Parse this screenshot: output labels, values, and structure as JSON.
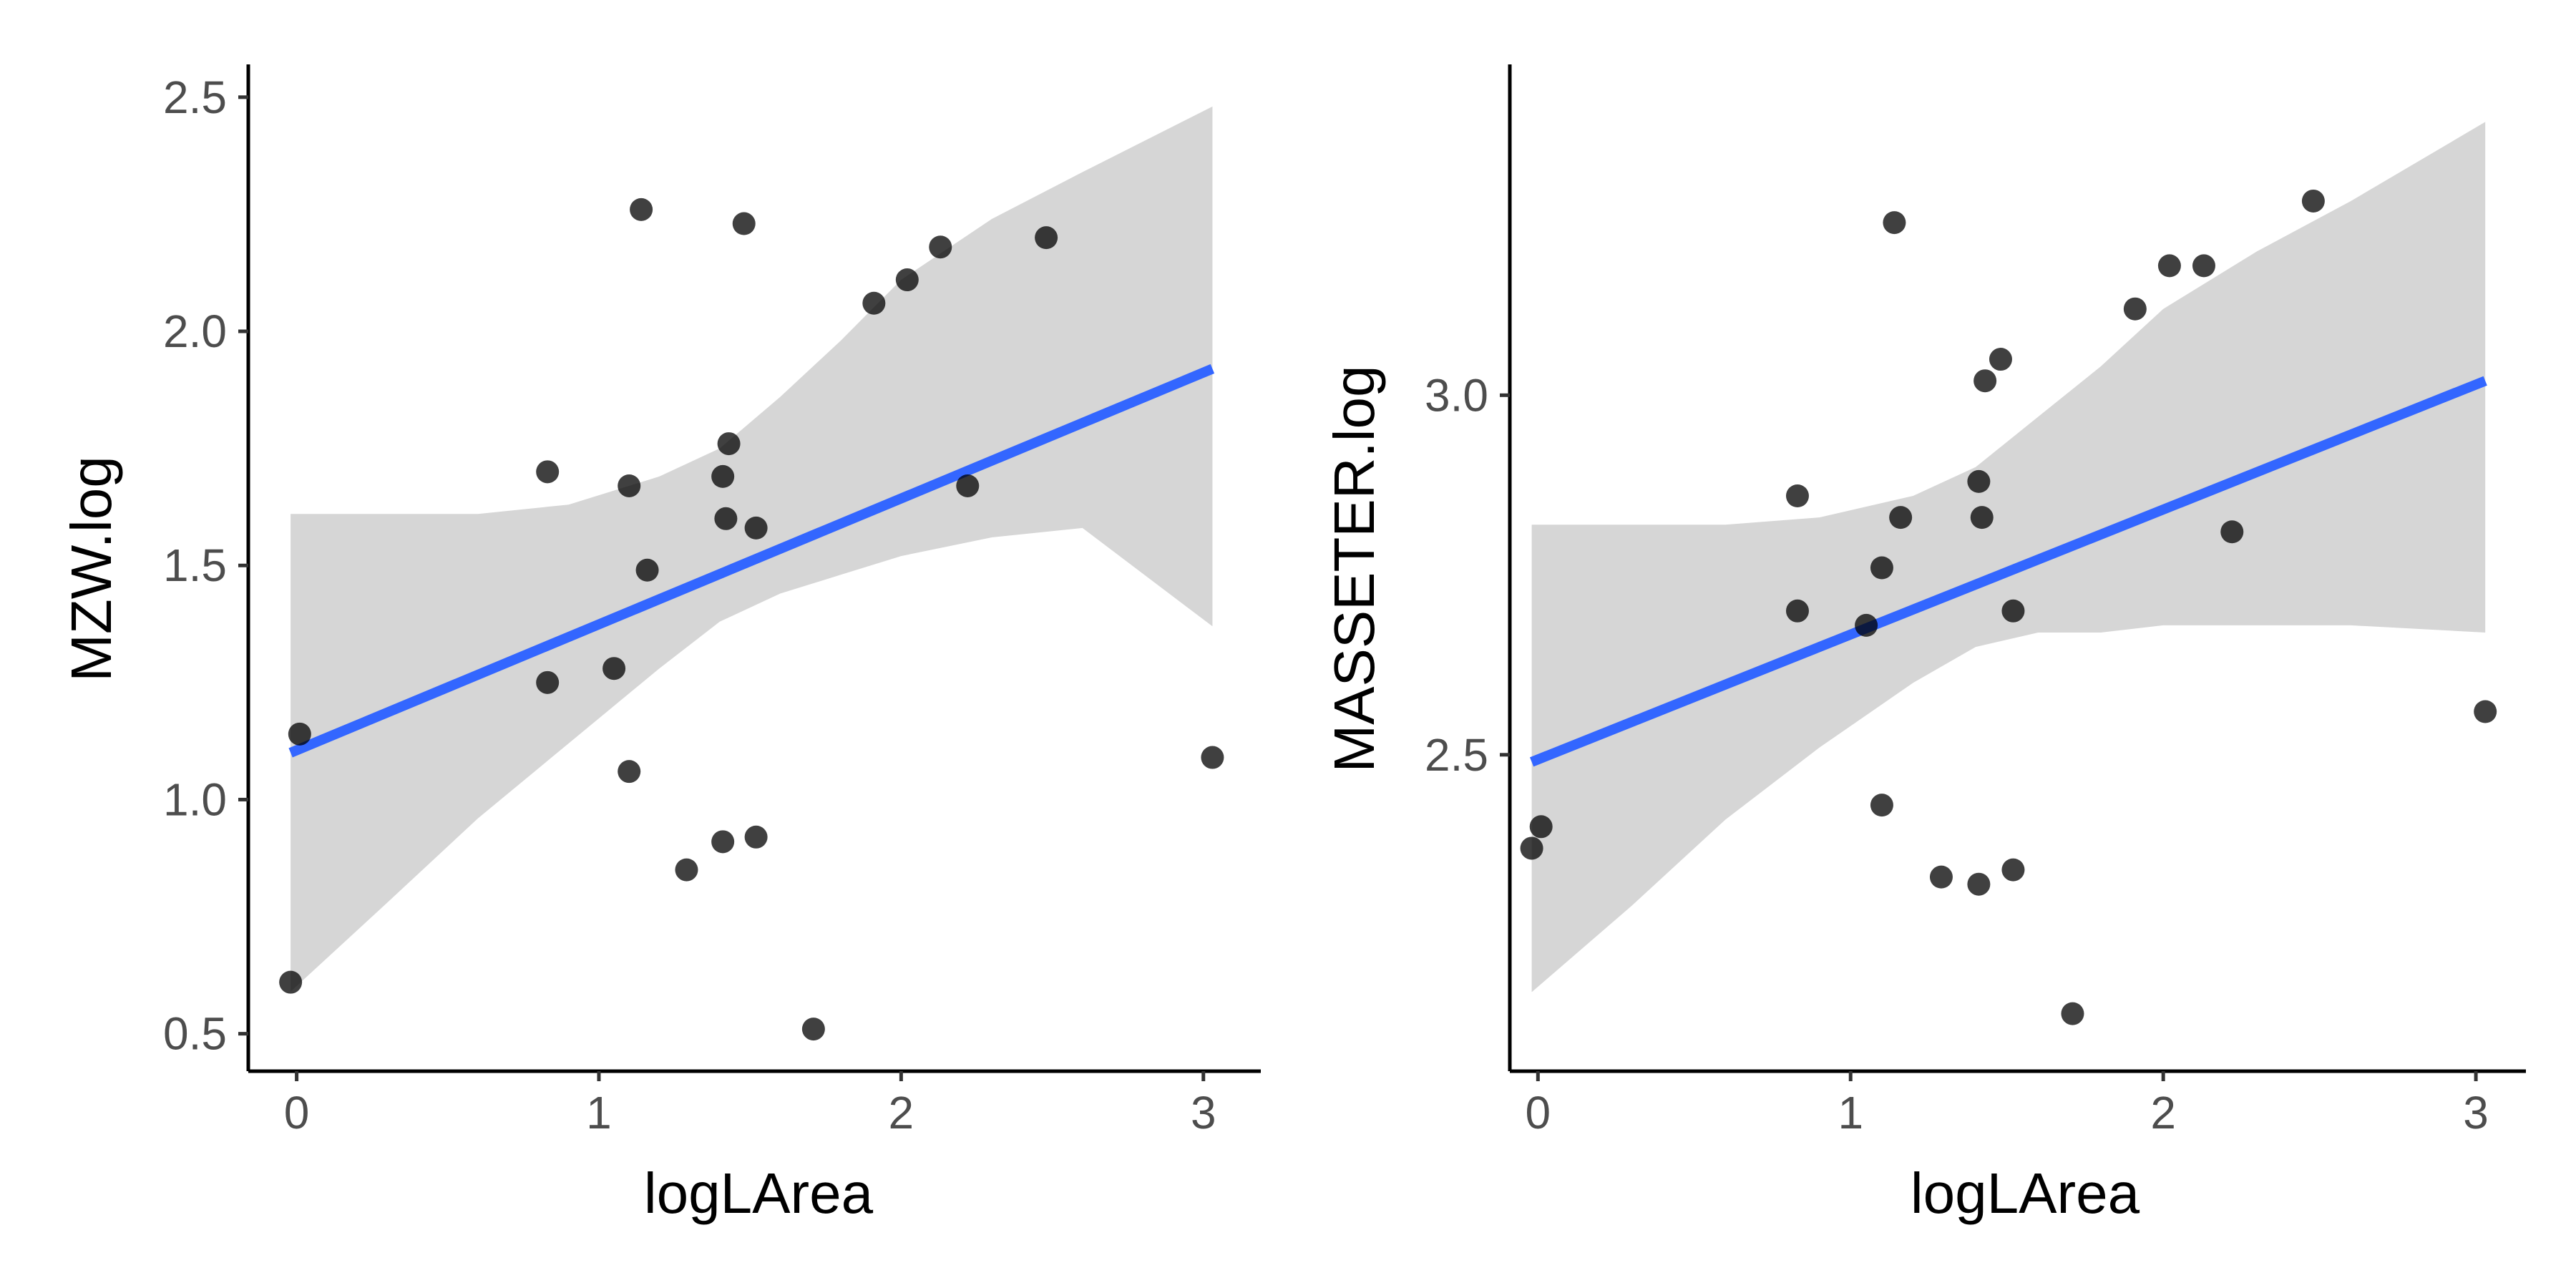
{
  "chart_data": [
    {
      "type": "scatter",
      "xlabel": "logLArea",
      "ylabel": "MZW.log",
      "xlim": [
        -0.16,
        3.19
      ],
      "ylim": [
        0.42,
        2.57
      ],
      "xticks": [
        0,
        1,
        2,
        3
      ],
      "xtick_labels": [
        "0",
        "1",
        "2",
        "3"
      ],
      "yticks": [
        0.5,
        1.0,
        1.5,
        2.0,
        2.5
      ],
      "ytick_labels": [
        "0.5",
        "1.0",
        "1.5",
        "2.0",
        "2.5"
      ],
      "grid": false,
      "colors": {
        "points": "#000000",
        "fit": "#3366ff",
        "ribbon": "#d6d6d6"
      },
      "points": [
        {
          "x": -0.02,
          "y": 0.61
        },
        {
          "x": 0.01,
          "y": 1.14
        },
        {
          "x": 0.83,
          "y": 1.7
        },
        {
          "x": 0.83,
          "y": 1.25
        },
        {
          "x": 1.05,
          "y": 1.28
        },
        {
          "x": 1.1,
          "y": 1.67
        },
        {
          "x": 1.1,
          "y": 1.06
        },
        {
          "x": 1.14,
          "y": 2.26
        },
        {
          "x": 1.16,
          "y": 1.49
        },
        {
          "x": 1.29,
          "y": 0.85
        },
        {
          "x": 1.41,
          "y": 0.91
        },
        {
          "x": 1.41,
          "y": 1.69
        },
        {
          "x": 1.42,
          "y": 1.6
        },
        {
          "x": 1.43,
          "y": 1.76
        },
        {
          "x": 1.48,
          "y": 2.23
        },
        {
          "x": 1.52,
          "y": 0.92
        },
        {
          "x": 1.52,
          "y": 1.58
        },
        {
          "x": 1.71,
          "y": 0.51
        },
        {
          "x": 1.91,
          "y": 2.06
        },
        {
          "x": 2.02,
          "y": 2.11
        },
        {
          "x": 2.13,
          "y": 2.18
        },
        {
          "x": 2.22,
          "y": 1.67
        },
        {
          "x": 2.48,
          "y": 2.2
        },
        {
          "x": 3.03,
          "y": 1.09
        }
      ],
      "fit": {
        "x": [
          -0.02,
          3.03
        ],
        "y": [
          1.1,
          1.92
        ]
      },
      "ribbon": {
        "x": [
          -0.02,
          0.3,
          0.6,
          0.9,
          1.2,
          1.4,
          1.6,
          1.8,
          2.0,
          2.3,
          2.6,
          3.03
        ],
        "upper": [
          1.61,
          1.61,
          1.61,
          1.63,
          1.69,
          1.75,
          1.86,
          1.98,
          2.11,
          2.24,
          2.34,
          2.48
        ],
        "lower": [
          0.59,
          0.78,
          0.96,
          1.12,
          1.28,
          1.38,
          1.44,
          1.48,
          1.52,
          1.56,
          1.58,
          1.37
        ]
      }
    },
    {
      "type": "scatter",
      "xlabel": "logLArea",
      "ylabel": "MASSETER.log",
      "xlim": [
        -0.09,
        3.16
      ],
      "ylim": [
        2.06,
        3.46
      ],
      "xticks": [
        0,
        1,
        2,
        3
      ],
      "xtick_labels": [
        "0",
        "1",
        "2",
        "3"
      ],
      "yticks": [
        2.5,
        3.0
      ],
      "ytick_labels": [
        "2.5",
        "3.0"
      ],
      "grid": false,
      "colors": {
        "points": "#000000",
        "fit": "#3366ff",
        "ribbon": "#d6d6d6"
      },
      "points": [
        {
          "x": -0.02,
          "y": 2.37
        },
        {
          "x": 0.01,
          "y": 2.4
        },
        {
          "x": 0.83,
          "y": 2.86
        },
        {
          "x": 0.83,
          "y": 2.7
        },
        {
          "x": 1.05,
          "y": 2.68
        },
        {
          "x": 1.1,
          "y": 2.76
        },
        {
          "x": 1.1,
          "y": 2.43
        },
        {
          "x": 1.14,
          "y": 3.24
        },
        {
          "x": 1.16,
          "y": 2.83
        },
        {
          "x": 1.29,
          "y": 2.33
        },
        {
          "x": 1.41,
          "y": 2.32
        },
        {
          "x": 1.41,
          "y": 2.88
        },
        {
          "x": 1.42,
          "y": 2.83
        },
        {
          "x": 1.43,
          "y": 3.02
        },
        {
          "x": 1.48,
          "y": 3.05
        },
        {
          "x": 1.52,
          "y": 2.34
        },
        {
          "x": 1.52,
          "y": 2.7
        },
        {
          "x": 1.71,
          "y": 2.14
        },
        {
          "x": 1.91,
          "y": 3.12
        },
        {
          "x": 2.02,
          "y": 3.18
        },
        {
          "x": 2.13,
          "y": 3.18
        },
        {
          "x": 2.22,
          "y": 2.81
        },
        {
          "x": 2.48,
          "y": 3.27
        },
        {
          "x": 3.03,
          "y": 2.56
        }
      ],
      "fit": {
        "x": [
          -0.02,
          3.03
        ],
        "y": [
          2.49,
          3.02
        ]
      },
      "ribbon": {
        "x": [
          -0.02,
          0.3,
          0.6,
          0.9,
          1.2,
          1.4,
          1.6,
          1.8,
          2.0,
          2.3,
          2.6,
          3.03
        ],
        "upper": [
          2.82,
          2.82,
          2.82,
          2.83,
          2.86,
          2.9,
          2.97,
          3.04,
          3.12,
          3.2,
          3.27,
          3.38
        ],
        "lower": [
          2.17,
          2.29,
          2.41,
          2.51,
          2.6,
          2.65,
          2.67,
          2.67,
          2.68,
          2.68,
          2.68,
          2.67
        ]
      }
    }
  ]
}
